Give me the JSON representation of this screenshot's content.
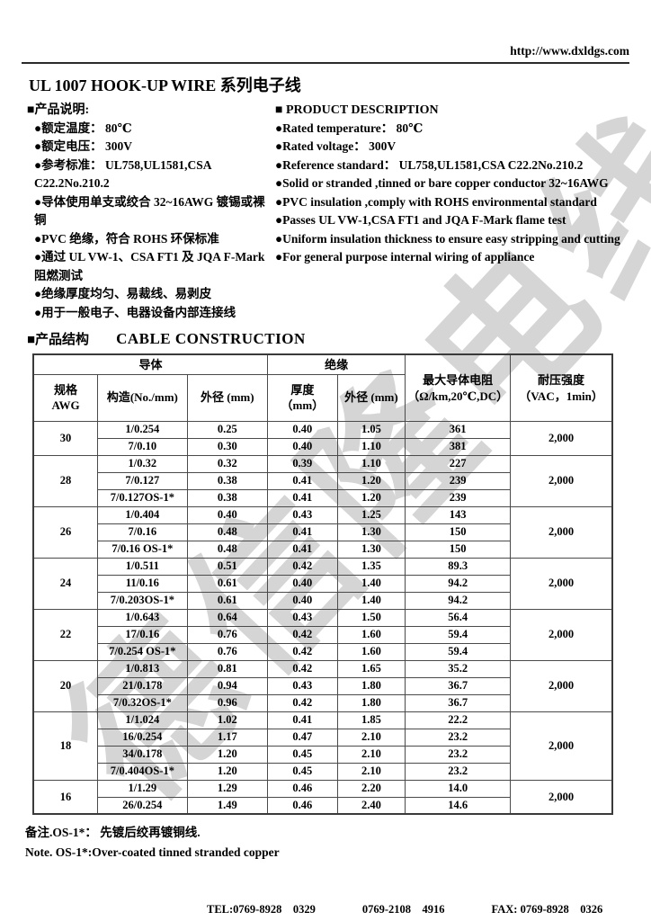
{
  "watermark": {
    "text": "德信隆电线"
  },
  "header": {
    "url": "http://www.dxldgs.com",
    "title": "UL 1007 HOOK-UP WIRE 系列电子线"
  },
  "description_cn": {
    "heading": "■产品说明:",
    "items": [
      "●额定温度： 80℃",
      "●额定电压： 300V",
      "●参考标准： UL758,UL1581,CSA C22.2No.210.2",
      "●导体使用单支或绞合 32~16AWG 镀锡或裸铜",
      "●PVC 绝缘，符合 ROHS 环保标准",
      "●通过 UL VW-1、CSA FT1 及 JQA F-Mark 阻燃测试",
      "●绝缘厚度均匀、易裁线、易剥皮",
      "●用于一般电子、电器设备内部连接线"
    ]
  },
  "description_en": {
    "heading": "■ PRODUCT DESCRIPTION",
    "items": [
      "●Rated temperature： 80℃",
      "●Rated voltage： 300V",
      "●Reference standard： UL758,UL1581,CSA C22.2No.210.2",
      "●Solid or stranded ,tinned or bare copper conductor 32~16AWG",
      "●PVC insulation ,comply with ROHS environmental standard",
      "●Passes UL VW-1,CSA FT1 and JQA F-Mark flame test",
      "●Uniform insulation thickness to ensure easy stripping and cutting",
      "●For general purpose internal wiring of appliance"
    ]
  },
  "construction": {
    "heading_cn": "■产品结构",
    "heading_en": "CABLE CONSTRUCTION",
    "table": {
      "header": {
        "conductor": "导体",
        "insulation": "绝缘",
        "spec": "规格\nAWG",
        "construction": "构造(No./mm)",
        "conductor_od": "外径 (mm)",
        "thickness": "厚度\n（mm）",
        "insulation_od": "外径 (mm)",
        "max_resistance": "最大导体电阻\n（Ω/km,20℃,DC）",
        "withstand": "耐压强度\n（VAC，1min）"
      },
      "groups": [
        {
          "awg": "30",
          "withstand": "2,000",
          "rows": [
            [
              "1/0.254",
              "0.25",
              "0.40",
              "1.05",
              "361"
            ],
            [
              "7/0.10",
              "0.30",
              "0.40",
              "1.10",
              "381"
            ]
          ]
        },
        {
          "awg": "28",
          "withstand": "2,000",
          "rows": [
            [
              "1/0.32",
              "0.32",
              "0.39",
              "1.10",
              "227"
            ],
            [
              "7/0.127",
              "0.38",
              "0.41",
              "1.20",
              "239"
            ],
            [
              "7/0.127OS-1*",
              "0.38",
              "0.41",
              "1.20",
              "239"
            ]
          ]
        },
        {
          "awg": "26",
          "withstand": "2,000",
          "rows": [
            [
              "1/0.404",
              "0.40",
              "0.43",
              "1.25",
              "143"
            ],
            [
              "7/0.16",
              "0.48",
              "0.41",
              "1.30",
              "150"
            ],
            [
              "7/0.16 OS-1*",
              "0.48",
              "0.41",
              "1.30",
              "150"
            ]
          ]
        },
        {
          "awg": "24",
          "withstand": "2,000",
          "rows": [
            [
              "1/0.511",
              "0.51",
              "0.42",
              "1.35",
              "89.3"
            ],
            [
              "11/0.16",
              "0.61",
              "0.40",
              "1.40",
              "94.2"
            ],
            [
              "7/0.203OS-1*",
              "0.61",
              "0.40",
              "1.40",
              "94.2"
            ]
          ]
        },
        {
          "awg": "22",
          "withstand": "2,000",
          "rows": [
            [
              "1/0.643",
              "0.64",
              "0.43",
              "1.50",
              "56.4"
            ],
            [
              "17/0.16",
              "0.76",
              "0.42",
              "1.60",
              "59.4"
            ],
            [
              "7/0.254 OS-1*",
              "0.76",
              "0.42",
              "1.60",
              "59.4"
            ]
          ]
        },
        {
          "awg": "20",
          "withstand": "2,000",
          "rows": [
            [
              "1/0.813",
              "0.81",
              "0.42",
              "1.65",
              "35.2"
            ],
            [
              "21/0.178",
              "0.94",
              "0.43",
              "1.80",
              "36.7"
            ],
            [
              "7/0.32OS-1*",
              "0.96",
              "0.42",
              "1.80",
              "36.7"
            ]
          ]
        },
        {
          "awg": "18",
          "withstand": "2,000",
          "rows": [
            [
              "1/1.024",
              "1.02",
              "0.41",
              "1.85",
              "22.2"
            ],
            [
              "16/0.254",
              "1.17",
              "0.47",
              "2.10",
              "23.2"
            ],
            [
              "34/0.178",
              "1.20",
              "0.45",
              "2.10",
              "23.2"
            ],
            [
              "7/0.404OS-1*",
              "1.20",
              "0.45",
              "2.10",
              "23.2"
            ]
          ]
        },
        {
          "awg": "16",
          "withstand": "2,000",
          "rows": [
            [
              "1/1.29",
              "1.29",
              "0.46",
              "2.20",
              "14.0"
            ],
            [
              "26/0.254",
              "1.49",
              "0.46",
              "2.40",
              "14.6"
            ]
          ]
        }
      ]
    }
  },
  "notes": {
    "cn": "备注.OS-1*： 先镀后绞再镀铜线.",
    "en": "Note. OS-1*:Over-coated tinned stranded copper"
  },
  "footer": {
    "segments": [
      "TEL:0769-8928    0329",
      "0769-2108    4916",
      "FAX: 0769-8928    0326"
    ]
  }
}
